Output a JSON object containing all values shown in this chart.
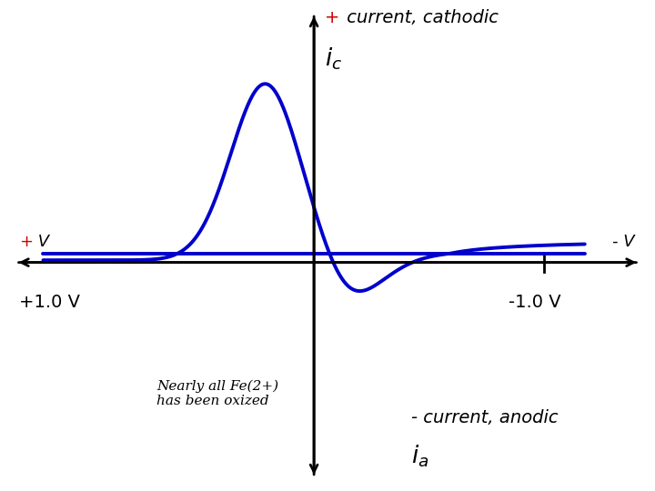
{
  "bg_color": "#ffffff",
  "curve_color": "#0000cc",
  "curve_linewidth": 2.8,
  "axis_color": "#000000",
  "axis_linewidth": 2.0,
  "plus_v_label_plus": "+",
  "plus_v_label_v": " V",
  "minus_v_label": "- V",
  "plus_1v_label": "+1.0 V",
  "minus_1v_label": "-1.0 V",
  "top_label_plus": "+",
  "top_label_text": " current, cathodic",
  "ic_label": "i_c",
  "bottom_label_text": "- current, anodic",
  "ia_label": "i_a",
  "annotation_text": "Nearly all Fe(2+)\nhas been oxized",
  "top_label_plus_color": "#cc0000",
  "plus_v_color": "#cc0000",
  "text_color": "#000000"
}
